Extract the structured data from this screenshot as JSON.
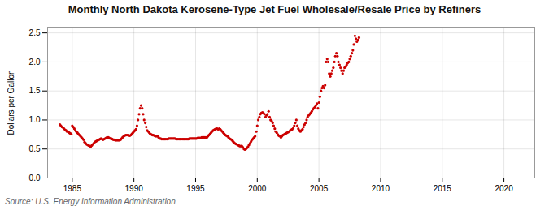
{
  "chart_data": {
    "type": "scatter",
    "title": "Monthly North Dakota Kerosene-Type Jet Fuel Wholesale/Resale Price by Refiners",
    "ylabel": "Dollars per Gallon",
    "source": "Source: U.S. Energy Information Administration",
    "color": "#cc0000",
    "grid": true,
    "xlim": [
      1983.0,
      2022.5
    ],
    "ylim": [
      0.0,
      2.6
    ],
    "xticks": [
      1985,
      1990,
      1995,
      2000,
      2005,
      2010,
      2015,
      2020
    ],
    "yticks": [
      {
        "value": 0.0,
        "label": "0.0"
      },
      0.5,
      {
        "value": 1.0,
        "label": "1.0"
      },
      1.5,
      {
        "value": 2.0,
        "label": "2.0"
      },
      2.5
    ],
    "x": [
      1984.0,
      1984.08,
      1984.17,
      1984.25,
      1984.33,
      1984.42,
      1984.5,
      1984.58,
      1984.67,
      1984.75,
      1984.83,
      1984.92,
      1985.0,
      1985.08,
      1985.17,
      1985.25,
      1985.33,
      1985.42,
      1985.5,
      1985.58,
      1985.67,
      1985.75,
      1985.83,
      1985.92,
      1986.0,
      1986.08,
      1986.17,
      1986.25,
      1986.33,
      1986.42,
      1986.5,
      1986.58,
      1986.67,
      1986.75,
      1986.83,
      1986.92,
      1987.0,
      1987.08,
      1987.17,
      1987.25,
      1987.33,
      1987.42,
      1987.5,
      1987.58,
      1987.67,
      1987.75,
      1987.83,
      1987.92,
      1988.0,
      1988.08,
      1988.17,
      1988.25,
      1988.33,
      1988.42,
      1988.5,
      1988.58,
      1988.67,
      1988.75,
      1988.83,
      1988.92,
      1989.0,
      1989.08,
      1989.17,
      1989.25,
      1989.33,
      1989.42,
      1989.5,
      1989.58,
      1989.67,
      1989.75,
      1989.83,
      1989.92,
      1990.0,
      1990.08,
      1990.17,
      1990.25,
      1990.33,
      1990.42,
      1990.5,
      1990.58,
      1990.67,
      1990.75,
      1990.83,
      1990.92,
      1991.0,
      1991.08,
      1991.17,
      1991.25,
      1991.33,
      1991.42,
      1991.5,
      1991.58,
      1991.67,
      1991.75,
      1991.83,
      1991.92,
      1992.0,
      1992.08,
      1992.17,
      1992.25,
      1992.33,
      1992.42,
      1992.5,
      1992.58,
      1992.67,
      1992.75,
      1992.83,
      1992.92,
      1993.0,
      1993.08,
      1993.17,
      1993.25,
      1993.33,
      1993.42,
      1993.5,
      1993.58,
      1993.67,
      1993.75,
      1993.83,
      1993.92,
      1994.0,
      1994.08,
      1994.17,
      1994.25,
      1994.33,
      1994.42,
      1994.5,
      1994.58,
      1994.67,
      1994.75,
      1994.83,
      1994.92,
      1995.0,
      1995.08,
      1995.17,
      1995.25,
      1995.33,
      1995.42,
      1995.5,
      1995.58,
      1995.67,
      1995.75,
      1995.83,
      1995.92,
      1996.0,
      1996.08,
      1996.17,
      1996.25,
      1996.33,
      1996.42,
      1996.5,
      1996.58,
      1996.67,
      1996.75,
      1996.83,
      1996.92,
      1997.0,
      1997.08,
      1997.17,
      1997.25,
      1997.33,
      1997.42,
      1997.5,
      1997.58,
      1997.67,
      1997.75,
      1997.83,
      1997.92,
      1998.0,
      1998.08,
      1998.17,
      1998.25,
      1998.33,
      1998.42,
      1998.5,
      1998.58,
      1998.67,
      1998.75,
      1998.83,
      1998.92,
      1999.0,
      1999.08,
      1999.17,
      1999.25,
      1999.33,
      1999.42,
      1999.5,
      1999.58,
      1999.67,
      1999.75,
      1999.83,
      1999.92,
      2000.0,
      2000.08,
      2000.17,
      2000.25,
      2000.33,
      2000.42,
      2000.5,
      2000.58,
      2000.67,
      2000.75,
      2000.83,
      2000.92,
      2001.0,
      2001.08,
      2001.17,
      2001.25,
      2001.33,
      2001.42,
      2001.5,
      2001.58,
      2001.67,
      2001.75,
      2001.83,
      2001.92,
      2002.0,
      2002.08,
      2002.17,
      2002.25,
      2002.33,
      2002.42,
      2002.5,
      2002.58,
      2002.67,
      2002.75,
      2002.83,
      2002.92,
      2003.0,
      2003.08,
      2003.17,
      2003.25,
      2003.33,
      2003.42,
      2003.5,
      2003.58,
      2003.67,
      2003.75,
      2003.83,
      2003.92,
      2004.0,
      2004.08,
      2004.17,
      2004.25,
      2004.33,
      2004.42,
      2004.5,
      2004.58,
      2004.67,
      2004.75,
      2004.83,
      2004.92,
      2005.0,
      2005.08,
      2005.17,
      2005.25,
      2005.33,
      2005.42,
      2005.5,
      2005.58,
      2005.67,
      2005.75,
      2005.83,
      2005.92,
      2006.0,
      2006.08,
      2006.17,
      2006.25,
      2006.33,
      2006.42,
      2006.5,
      2006.58,
      2006.67,
      2006.75,
      2006.83,
      2006.92,
      2007.0,
      2007.08,
      2007.17,
      2007.25,
      2007.33,
      2007.42,
      2007.5,
      2007.58,
      2007.67,
      2007.75,
      2007.83,
      2007.92,
      2008.0,
      2008.08,
      2008.17,
      2008.25
    ],
    "values": [
      0.92,
      0.9,
      0.88,
      0.87,
      0.85,
      0.83,
      0.82,
      0.8,
      0.8,
      0.78,
      0.77,
      0.76,
      0.9,
      0.88,
      0.85,
      0.82,
      0.8,
      0.78,
      0.76,
      0.74,
      0.72,
      0.7,
      0.68,
      0.66,
      0.62,
      0.6,
      0.58,
      0.57,
      0.56,
      0.55,
      0.54,
      0.56,
      0.58,
      0.6,
      0.62,
      0.63,
      0.64,
      0.65,
      0.66,
      0.67,
      0.68,
      0.67,
      0.66,
      0.67,
      0.68,
      0.69,
      0.7,
      0.7,
      0.69,
      0.68,
      0.68,
      0.67,
      0.66,
      0.66,
      0.65,
      0.65,
      0.65,
      0.65,
      0.65,
      0.66,
      0.68,
      0.7,
      0.72,
      0.73,
      0.74,
      0.74,
      0.74,
      0.73,
      0.73,
      0.74,
      0.76,
      0.78,
      0.8,
      0.82,
      0.84,
      0.9,
      1.0,
      1.1,
      1.2,
      1.25,
      1.2,
      1.1,
      1.0,
      0.95,
      0.88,
      0.82,
      0.8,
      0.78,
      0.76,
      0.75,
      0.74,
      0.74,
      0.73,
      0.72,
      0.72,
      0.72,
      0.7,
      0.68,
      0.68,
      0.67,
      0.67,
      0.67,
      0.67,
      0.67,
      0.67,
      0.67,
      0.68,
      0.68,
      0.68,
      0.68,
      0.68,
      0.68,
      0.68,
      0.67,
      0.67,
      0.67,
      0.67,
      0.67,
      0.67,
      0.67,
      0.67,
      0.67,
      0.67,
      0.67,
      0.67,
      0.67,
      0.68,
      0.68,
      0.68,
      0.68,
      0.68,
      0.68,
      0.68,
      0.68,
      0.69,
      0.69,
      0.69,
      0.69,
      0.7,
      0.7,
      0.7,
      0.7,
      0.7,
      0.7,
      0.72,
      0.74,
      0.76,
      0.78,
      0.8,
      0.82,
      0.83,
      0.84,
      0.85,
      0.85,
      0.84,
      0.85,
      0.84,
      0.82,
      0.8,
      0.78,
      0.76,
      0.74,
      0.73,
      0.72,
      0.7,
      0.68,
      0.67,
      0.66,
      0.64,
      0.62,
      0.6,
      0.59,
      0.58,
      0.57,
      0.56,
      0.55,
      0.55,
      0.55,
      0.53,
      0.5,
      0.49,
      0.5,
      0.52,
      0.54,
      0.57,
      0.6,
      0.63,
      0.66,
      0.68,
      0.7,
      0.72,
      0.8,
      0.9,
      1.0,
      1.05,
      1.1,
      1.12,
      1.13,
      1.12,
      1.1,
      1.05,
      1.08,
      1.1,
      1.15,
      1.05,
      1.0,
      0.98,
      0.95,
      0.9,
      0.85,
      0.8,
      0.78,
      0.75,
      0.73,
      0.72,
      0.7,
      0.72,
      0.74,
      0.75,
      0.76,
      0.77,
      0.78,
      0.79,
      0.8,
      0.82,
      0.83,
      0.84,
      0.86,
      0.9,
      0.95,
      1.0,
      0.9,
      0.85,
      0.82,
      0.8,
      0.82,
      0.84,
      0.88,
      0.92,
      0.95,
      1.0,
      1.05,
      1.08,
      1.1,
      1.12,
      1.15,
      1.18,
      1.2,
      1.22,
      1.25,
      1.28,
      1.2,
      1.3,
      1.4,
      1.5,
      1.55,
      1.58,
      1.55,
      1.6,
      2.0,
      2.05,
      2.0,
      1.8,
      1.75,
      1.8,
      1.85,
      1.9,
      2.0,
      2.1,
      2.15,
      2.1,
      2.0,
      1.95,
      1.9,
      1.85,
      1.8,
      1.85,
      1.9,
      1.92,
      1.95,
      1.98,
      2.0,
      2.05,
      2.1,
      2.15,
      2.2,
      2.3,
      2.45,
      2.4,
      2.35,
      2.38,
      2.42
    ]
  }
}
